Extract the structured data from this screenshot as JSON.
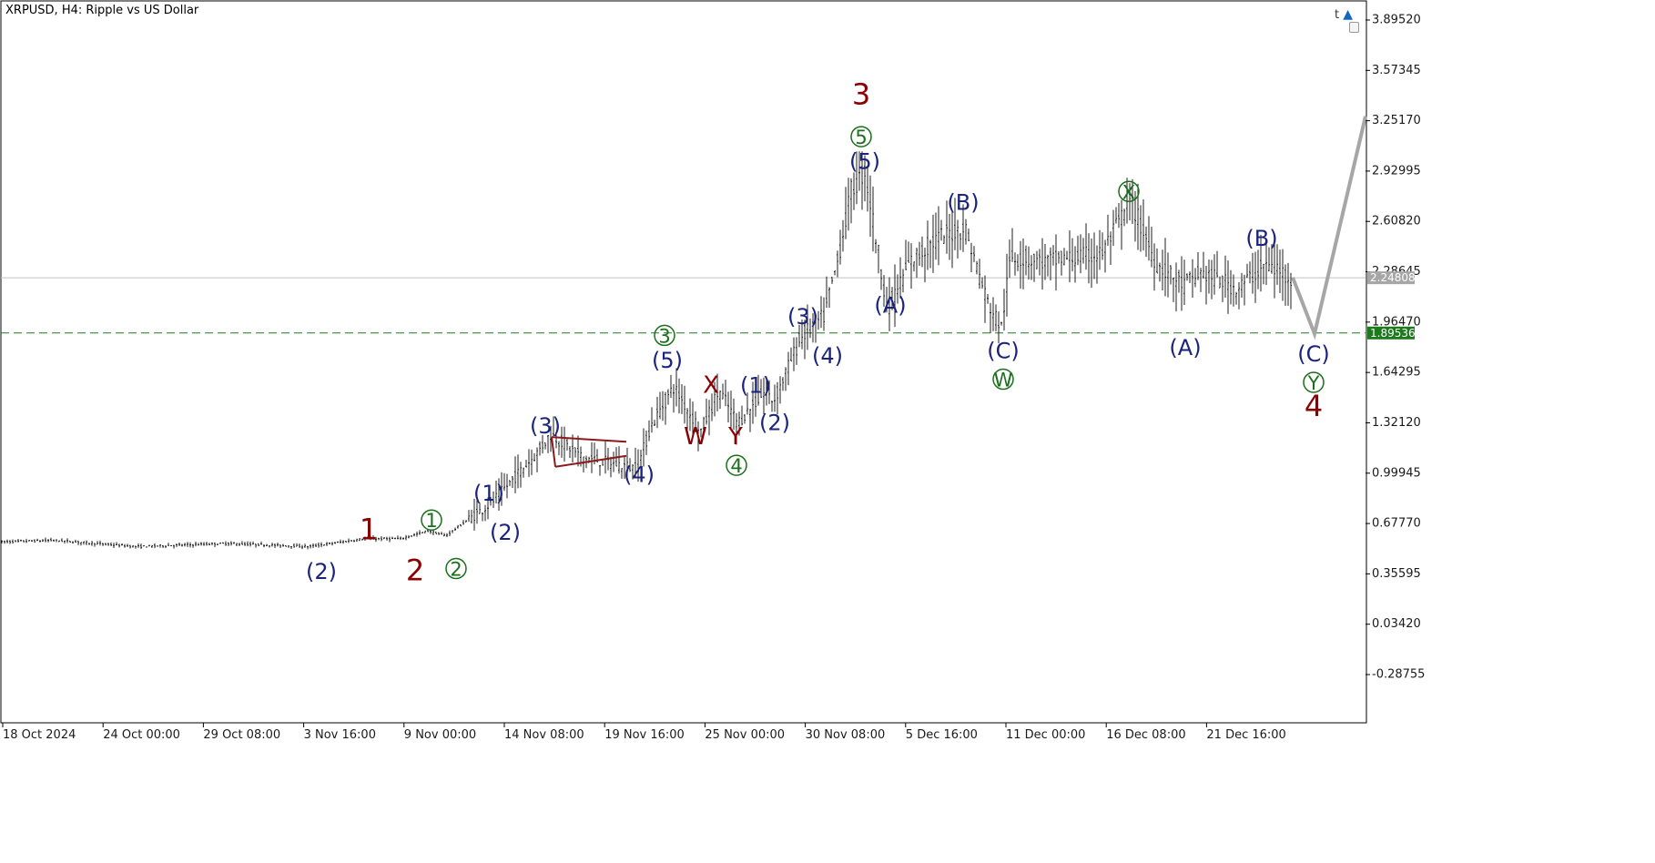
{
  "title": "XRPUSD, H4:  Ripple vs US Dollar",
  "icons": {
    "corner_letter": "t",
    "cap": "graduation-cap-icon",
    "lock": "lock-icon"
  },
  "colors": {
    "candle": "#1f1f1f",
    "forecast": "#a6a6a6",
    "current_line": "#c0c0c0",
    "level_line": "#1b7a1b",
    "level_badge": "#1b7a1b",
    "current_badge": "#a6a6a6",
    "wave_blue": "#1a237e",
    "wave_red": "#8b0000",
    "wave_green": "#1b6e1b"
  },
  "chart_data": {
    "type": "candlestick",
    "symbol": "XRPUSD",
    "timeframe": "H4",
    "ylim": [
      -0.6,
      4.05
    ],
    "y_ticks": [
      "3.89520",
      "3.57345",
      "3.25170",
      "2.92995",
      "2.60820",
      "2.28645",
      "1.96470",
      "1.64295",
      "1.32120",
      "0.99945",
      "0.67770",
      "0.35595",
      "0.03420",
      "-0.28755"
    ],
    "x_ticks": [
      "18 Oct 2024",
      "24 Oct 00:00",
      "29 Oct 08:00",
      "3 Nov 16:00",
      "9 Nov 00:00",
      "14 Nov 08:00",
      "19 Nov 16:00",
      "25 Nov 00:00",
      "30 Nov 08:00",
      "5 Dec 16:00",
      "11 Dec 00:00",
      "16 Dec 08:00",
      "21 Dec 16:00"
    ],
    "current_price": 2.24808,
    "current_price_label": "2.24808",
    "level": 1.89536,
    "level_label": "1.89536",
    "price_path": [
      [
        0,
        0.56
      ],
      [
        60,
        0.57
      ],
      [
        150,
        0.53
      ],
      [
        250,
        0.55
      ],
      [
        340,
        0.53
      ],
      [
        400,
        0.58
      ],
      [
        440,
        0.58
      ],
      [
        470,
        0.63
      ],
      [
        490,
        0.6
      ],
      [
        540,
        0.81
      ],
      [
        590,
        1.13
      ],
      [
        605,
        1.25
      ],
      [
        640,
        1.1
      ],
      [
        700,
        1.03
      ],
      [
        715,
        1.3
      ],
      [
        740,
        1.55
      ],
      [
        770,
        1.27
      ],
      [
        790,
        1.53
      ],
      [
        810,
        1.32
      ],
      [
        840,
        1.52
      ],
      [
        850,
        1.46
      ],
      [
        880,
        1.87
      ],
      [
        905,
        2.0
      ],
      [
        920,
        2.35
      ],
      [
        935,
        2.8
      ],
      [
        950,
        2.93
      ],
      [
        975,
        2.05
      ],
      [
        1000,
        2.35
      ],
      [
        1030,
        2.5
      ],
      [
        1060,
        2.57
      ],
      [
        1085,
        2.09
      ],
      [
        1100,
        1.93
      ],
      [
        1110,
        2.38
      ],
      [
        1150,
        2.35
      ],
      [
        1210,
        2.4
      ],
      [
        1242,
        2.74
      ],
      [
        1270,
        2.34
      ],
      [
        1300,
        2.2
      ],
      [
        1320,
        2.28
      ],
      [
        1360,
        2.18
      ],
      [
        1390,
        2.33
      ],
      [
        1420,
        2.25
      ]
    ],
    "forecast_path": [
      [
        1420,
        2.25
      ],
      [
        1444,
        1.89
      ],
      [
        1500,
        3.28
      ]
    ],
    "triangle": [
      [
        [
          606,
          1.23
        ],
        [
          688,
          1.2
        ]
      ],
      [
        [
          610,
          1.04
        ],
        [
          688,
          1.11
        ]
      ]
    ]
  },
  "waves": [
    {
      "text": "3",
      "c": "red",
      "x": 946,
      "p": 3.42
    },
    {
      "text": "5",
      "c": "green",
      "circle": true,
      "x": 946,
      "p": 3.15
    },
    {
      "text": "(5)",
      "c": "blue",
      "x": 950,
      "p": 2.99
    },
    {
      "text": "(B)",
      "c": "blue",
      "x": 1058,
      "p": 2.73
    },
    {
      "text": "X",
      "c": "green",
      "circle": true,
      "x": 1240,
      "p": 2.8
    },
    {
      "text": "(B)",
      "c": "blue",
      "x": 1386,
      "p": 2.5
    },
    {
      "text": "(A)",
      "c": "blue",
      "x": 978,
      "p": 2.07
    },
    {
      "text": "(3)",
      "c": "blue",
      "x": 882,
      "p": 2.0
    },
    {
      "text": "(4)",
      "c": "blue",
      "x": 909,
      "p": 1.75
    },
    {
      "text": "3",
      "c": "green",
      "circle": true,
      "x": 730,
      "p": 1.88
    },
    {
      "text": "(5)",
      "c": "blue",
      "x": 733,
      "p": 1.72
    },
    {
      "text": "X",
      "c": "redsm",
      "x": 781,
      "p": 1.56
    },
    {
      "text": "(1)",
      "c": "blue",
      "x": 830,
      "p": 1.56
    },
    {
      "text": "(2)",
      "c": "blue",
      "x": 851,
      "p": 1.32
    },
    {
      "text": "W",
      "c": "redsm",
      "x": 764,
      "p": 1.23
    },
    {
      "text": "Y",
      "c": "redsm",
      "x": 808,
      "p": 1.23
    },
    {
      "text": "4",
      "c": "green",
      "circle": true,
      "x": 809,
      "p": 1.05
    },
    {
      "text": "(3)",
      "c": "blue",
      "x": 599,
      "p": 1.3
    },
    {
      "text": "(4)",
      "c": "blue",
      "x": 702,
      "p": 0.99
    },
    {
      "text": "(C)",
      "c": "blue",
      "x": 1102,
      "p": 1.78
    },
    {
      "text": "W",
      "c": "green",
      "circle": true,
      "x": 1102,
      "p": 1.6
    },
    {
      "text": "(A)",
      "c": "blue",
      "x": 1302,
      "p": 1.8
    },
    {
      "text": "(C)",
      "c": "blue",
      "x": 1443,
      "p": 1.76
    },
    {
      "text": "Y",
      "c": "green",
      "circle": true,
      "x": 1443,
      "p": 1.58
    },
    {
      "text": "4",
      "c": "red",
      "x": 1443,
      "p": 1.43
    },
    {
      "text": "(1)",
      "c": "blue",
      "x": 537,
      "p": 0.87
    },
    {
      "text": "(2)",
      "c": "blue",
      "x": 555,
      "p": 0.62
    },
    {
      "text": "1",
      "c": "red",
      "x": 405,
      "p": 0.64
    },
    {
      "text": "1",
      "c": "green",
      "circle": true,
      "x": 474,
      "p": 0.7
    },
    {
      "text": "2",
      "c": "red",
      "x": 456,
      "p": 0.38
    },
    {
      "text": "2",
      "c": "green",
      "circle": true,
      "x": 501,
      "p": 0.39
    },
    {
      "text": "(2)",
      "c": "blue",
      "x": 353,
      "p": 0.37
    }
  ]
}
